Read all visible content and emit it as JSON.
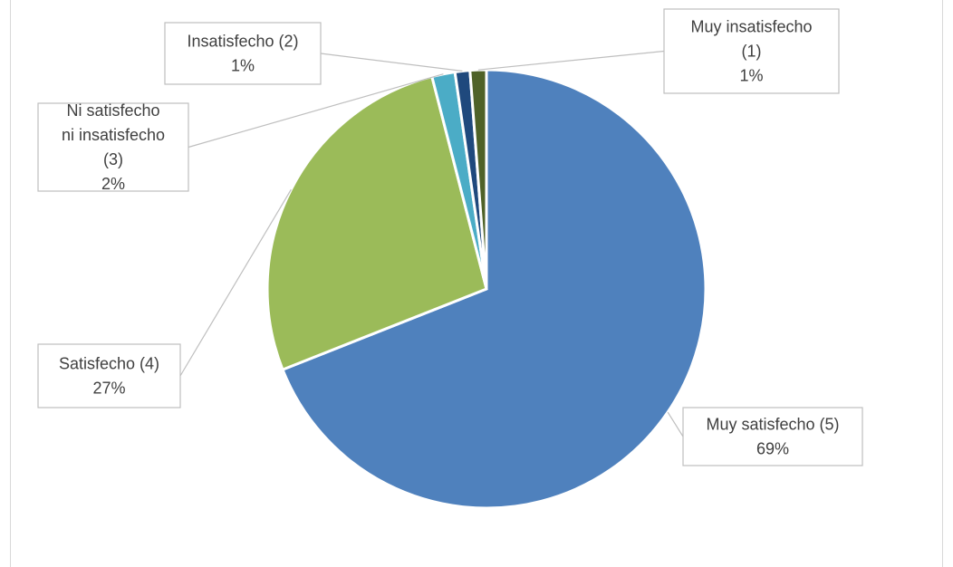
{
  "chart_data": {
    "type": "pie",
    "title": "",
    "slices": [
      {
        "label": "Muy satisfecho (5)",
        "percent_label": "69%",
        "value": 69,
        "color": "#4F81BD"
      },
      {
        "label": "Satisfecho (4)",
        "percent_label": "27%",
        "value": 27,
        "color": "#9BBB59"
      },
      {
        "label": "Ni satisfecho ni insatisfecho (3)",
        "percent_label": "2%",
        "value": 1.7,
        "color": "#4BACC6"
      },
      {
        "label": "Insatisfecho (2)",
        "percent_label": "1%",
        "value": 1.1,
        "color": "#1F497D"
      },
      {
        "label": "Muy insatisfecho (1)",
        "percent_label": "1%",
        "value": 1.2,
        "color": "#4F6228"
      }
    ]
  }
}
